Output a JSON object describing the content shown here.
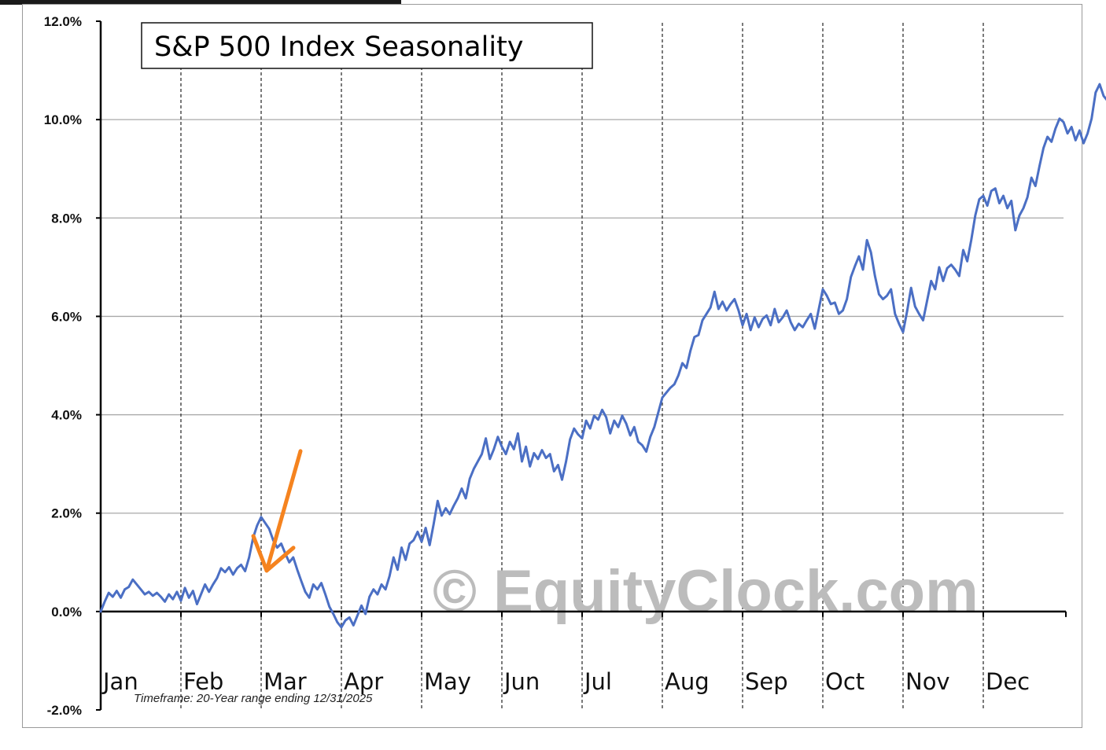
{
  "chart_data": {
    "type": "line",
    "title": "S&P 500 Index Seasonality",
    "footnote": "Timeframe: 20-Year range ending 12/31/2025",
    "watermark": "© EquityClock.com",
    "ylim": [
      -2.0,
      12.0
    ],
    "yticks": [
      {
        "value": 12.0,
        "label": "12.0%"
      },
      {
        "value": 10.0,
        "label": "10.0%"
      },
      {
        "value": 8.0,
        "label": "8.0%"
      },
      {
        "value": 6.0,
        "label": "6.0%"
      },
      {
        "value": 4.0,
        "label": "4.0%"
      },
      {
        "value": 2.0,
        "label": "2.0%"
      },
      {
        "value": 0.0,
        "label": "0.0%"
      },
      {
        "value": -2.0,
        "label": "-2.0%"
      }
    ],
    "months": [
      "Jan",
      "Feb",
      "Mar",
      "Apr",
      "May",
      "Jun",
      "Jul",
      "Aug",
      "Sep",
      "Oct",
      "Nov",
      "Dec"
    ],
    "grid": true,
    "series": [
      {
        "name": "S&P 500 Index Seasonality",
        "color": "#4b6fc4",
        "x_unit": "month (0 = Jan 1, 12 = Dec 31)",
        "points": [
          [
            0.0,
            0.0
          ],
          [
            0.05,
            0.2
          ],
          [
            0.1,
            0.38
          ],
          [
            0.15,
            0.3
          ],
          [
            0.2,
            0.42
          ],
          [
            0.25,
            0.28
          ],
          [
            0.3,
            0.45
          ],
          [
            0.35,
            0.5
          ],
          [
            0.4,
            0.65
          ],
          [
            0.45,
            0.55
          ],
          [
            0.5,
            0.45
          ],
          [
            0.55,
            0.35
          ],
          [
            0.6,
            0.4
          ],
          [
            0.65,
            0.32
          ],
          [
            0.7,
            0.38
          ],
          [
            0.75,
            0.3
          ],
          [
            0.8,
            0.2
          ],
          [
            0.85,
            0.35
          ],
          [
            0.9,
            0.25
          ],
          [
            0.95,
            0.4
          ],
          [
            1.0,
            0.22
          ],
          [
            1.05,
            0.48
          ],
          [
            1.1,
            0.28
          ],
          [
            1.15,
            0.42
          ],
          [
            1.2,
            0.15
          ],
          [
            1.25,
            0.35
          ],
          [
            1.3,
            0.55
          ],
          [
            1.35,
            0.4
          ],
          [
            1.4,
            0.55
          ],
          [
            1.45,
            0.68
          ],
          [
            1.5,
            0.88
          ],
          [
            1.55,
            0.8
          ],
          [
            1.6,
            0.9
          ],
          [
            1.65,
            0.75
          ],
          [
            1.7,
            0.88
          ],
          [
            1.75,
            0.95
          ],
          [
            1.8,
            0.82
          ],
          [
            1.85,
            1.1
          ],
          [
            1.9,
            1.5
          ],
          [
            1.95,
            1.75
          ],
          [
            2.0,
            1.92
          ],
          [
            2.05,
            1.8
          ],
          [
            2.1,
            1.68
          ],
          [
            2.15,
            1.45
          ],
          [
            2.2,
            1.3
          ],
          [
            2.25,
            1.38
          ],
          [
            2.3,
            1.18
          ],
          [
            2.35,
            1.0
          ],
          [
            2.4,
            1.1
          ],
          [
            2.45,
            0.85
          ],
          [
            2.5,
            0.62
          ],
          [
            2.55,
            0.4
          ],
          [
            2.6,
            0.28
          ],
          [
            2.65,
            0.55
          ],
          [
            2.7,
            0.45
          ],
          [
            2.75,
            0.58
          ],
          [
            2.8,
            0.35
          ],
          [
            2.85,
            0.1
          ],
          [
            2.9,
            -0.05
          ],
          [
            2.95,
            -0.22
          ],
          [
            3.0,
            -0.32
          ],
          [
            3.05,
            -0.18
          ],
          [
            3.1,
            -0.12
          ],
          [
            3.15,
            -0.28
          ],
          [
            3.2,
            -0.08
          ],
          [
            3.25,
            0.12
          ],
          [
            3.3,
            -0.05
          ],
          [
            3.35,
            0.3
          ],
          [
            3.4,
            0.45
          ],
          [
            3.45,
            0.35
          ],
          [
            3.5,
            0.55
          ],
          [
            3.55,
            0.45
          ],
          [
            3.6,
            0.72
          ],
          [
            3.65,
            1.1
          ],
          [
            3.7,
            0.85
          ],
          [
            3.75,
            1.3
          ],
          [
            3.8,
            1.05
          ],
          [
            3.85,
            1.38
          ],
          [
            3.9,
            1.45
          ],
          [
            3.95,
            1.62
          ],
          [
            4.0,
            1.42
          ],
          [
            4.05,
            1.7
          ],
          [
            4.1,
            1.35
          ],
          [
            4.15,
            1.78
          ],
          [
            4.2,
            2.25
          ],
          [
            4.25,
            1.95
          ],
          [
            4.3,
            2.1
          ],
          [
            4.35,
            1.98
          ],
          [
            4.4,
            2.15
          ],
          [
            4.45,
            2.3
          ],
          [
            4.5,
            2.5
          ],
          [
            4.55,
            2.3
          ],
          [
            4.6,
            2.7
          ],
          [
            4.65,
            2.9
          ],
          [
            4.7,
            3.05
          ],
          [
            4.75,
            3.2
          ],
          [
            4.8,
            3.52
          ],
          [
            4.85,
            3.1
          ],
          [
            4.9,
            3.3
          ],
          [
            4.95,
            3.55
          ],
          [
            5.0,
            3.35
          ],
          [
            5.05,
            3.2
          ],
          [
            5.1,
            3.45
          ],
          [
            5.15,
            3.3
          ],
          [
            5.2,
            3.62
          ],
          [
            5.25,
            3.05
          ],
          [
            5.3,
            3.35
          ],
          [
            5.35,
            2.95
          ],
          [
            5.4,
            3.22
          ],
          [
            5.45,
            3.1
          ],
          [
            5.5,
            3.28
          ],
          [
            5.55,
            3.12
          ],
          [
            5.6,
            3.2
          ],
          [
            5.65,
            2.85
          ],
          [
            5.7,
            2.98
          ],
          [
            5.75,
            2.68
          ],
          [
            5.8,
            3.05
          ],
          [
            5.85,
            3.5
          ],
          [
            5.9,
            3.72
          ],
          [
            5.95,
            3.6
          ],
          [
            6.0,
            3.52
          ],
          [
            6.05,
            3.88
          ],
          [
            6.1,
            3.72
          ],
          [
            6.15,
            3.98
          ],
          [
            6.2,
            3.9
          ],
          [
            6.25,
            4.1
          ],
          [
            6.3,
            3.95
          ],
          [
            6.35,
            3.62
          ],
          [
            6.4,
            3.88
          ],
          [
            6.45,
            3.75
          ],
          [
            6.5,
            3.98
          ],
          [
            6.55,
            3.82
          ],
          [
            6.6,
            3.58
          ],
          [
            6.65,
            3.75
          ],
          [
            6.7,
            3.45
          ],
          [
            6.75,
            3.38
          ],
          [
            6.8,
            3.25
          ],
          [
            6.85,
            3.55
          ],
          [
            6.9,
            3.75
          ],
          [
            6.95,
            4.05
          ],
          [
            7.0,
            4.35
          ],
          [
            7.05,
            4.45
          ],
          [
            7.1,
            4.55
          ],
          [
            7.15,
            4.62
          ],
          [
            7.2,
            4.8
          ],
          [
            7.25,
            5.05
          ],
          [
            7.3,
            4.95
          ],
          [
            7.35,
            5.3
          ],
          [
            7.4,
            5.58
          ],
          [
            7.45,
            5.62
          ],
          [
            7.5,
            5.92
          ],
          [
            7.55,
            6.05
          ],
          [
            7.6,
            6.18
          ],
          [
            7.65,
            6.5
          ],
          [
            7.7,
            6.15
          ],
          [
            7.75,
            6.3
          ],
          [
            7.8,
            6.12
          ],
          [
            7.85,
            6.25
          ],
          [
            7.9,
            6.35
          ],
          [
            7.95,
            6.12
          ],
          [
            8.0,
            5.82
          ],
          [
            8.05,
            6.05
          ],
          [
            8.1,
            5.72
          ],
          [
            8.15,
            5.98
          ],
          [
            8.2,
            5.78
          ],
          [
            8.25,
            5.95
          ],
          [
            8.3,
            6.02
          ],
          [
            8.35,
            5.82
          ],
          [
            8.4,
            6.15
          ],
          [
            8.45,
            5.88
          ],
          [
            8.5,
            5.98
          ],
          [
            8.55,
            6.12
          ],
          [
            8.6,
            5.88
          ],
          [
            8.65,
            5.72
          ],
          [
            8.7,
            5.85
          ],
          [
            8.75,
            5.78
          ],
          [
            8.8,
            5.92
          ],
          [
            8.85,
            6.05
          ],
          [
            8.9,
            5.75
          ],
          [
            8.95,
            6.15
          ],
          [
            9.0,
            6.55
          ],
          [
            9.05,
            6.42
          ],
          [
            9.1,
            6.25
          ],
          [
            9.15,
            6.28
          ],
          [
            9.2,
            6.05
          ],
          [
            9.25,
            6.12
          ],
          [
            9.3,
            6.35
          ],
          [
            9.35,
            6.8
          ],
          [
            9.4,
            7.02
          ],
          [
            9.45,
            7.22
          ],
          [
            9.5,
            6.95
          ],
          [
            9.55,
            7.55
          ],
          [
            9.6,
            7.3
          ],
          [
            9.65,
            6.82
          ],
          [
            9.7,
            6.45
          ],
          [
            9.75,
            6.35
          ],
          [
            9.8,
            6.42
          ],
          [
            9.85,
            6.55
          ],
          [
            9.9,
            6.05
          ],
          [
            9.95,
            5.85
          ],
          [
            10.0,
            5.68
          ],
          [
            10.05,
            6.1
          ],
          [
            10.1,
            6.58
          ],
          [
            10.15,
            6.2
          ],
          [
            10.2,
            6.05
          ],
          [
            10.25,
            5.92
          ],
          [
            10.3,
            6.32
          ],
          [
            10.35,
            6.72
          ],
          [
            10.4,
            6.55
          ],
          [
            10.45,
            7.0
          ],
          [
            10.5,
            6.72
          ],
          [
            10.55,
            6.98
          ],
          [
            10.6,
            7.05
          ],
          [
            10.65,
            6.95
          ],
          [
            10.7,
            6.82
          ],
          [
            10.75,
            7.35
          ],
          [
            10.8,
            7.12
          ],
          [
            10.85,
            7.55
          ],
          [
            10.9,
            8.05
          ],
          [
            10.95,
            8.38
          ],
          [
            11.0,
            8.45
          ],
          [
            11.05,
            8.25
          ],
          [
            11.1,
            8.55
          ],
          [
            11.15,
            8.6
          ],
          [
            11.2,
            8.3
          ],
          [
            11.25,
            8.45
          ],
          [
            11.3,
            8.2
          ],
          [
            11.35,
            8.35
          ],
          [
            11.4,
            7.75
          ],
          [
            11.45,
            8.05
          ],
          [
            11.5,
            8.2
          ],
          [
            11.55,
            8.42
          ],
          [
            11.6,
            8.82
          ],
          [
            11.65,
            8.65
          ],
          [
            11.7,
            9.05
          ],
          [
            11.75,
            9.42
          ],
          [
            11.8,
            9.65
          ],
          [
            11.85,
            9.55
          ],
          [
            11.9,
            9.82
          ],
          [
            11.95,
            10.02
          ],
          [
            12.0,
            9.95
          ],
          [
            12.05,
            9.72
          ],
          [
            12.1,
            9.85
          ],
          [
            12.15,
            9.58
          ],
          [
            12.2,
            9.78
          ],
          [
            12.25,
            9.52
          ],
          [
            12.3,
            9.72
          ],
          [
            12.35,
            10.02
          ],
          [
            12.4,
            10.55
          ],
          [
            12.45,
            10.72
          ],
          [
            12.5,
            10.48
          ],
          [
            12.55,
            10.38
          ]
        ]
      }
    ],
    "annotation": {
      "type": "arrow",
      "color": "#f5831f",
      "points_to": {
        "x": 2.0,
        "y": 0.8
      }
    }
  }
}
